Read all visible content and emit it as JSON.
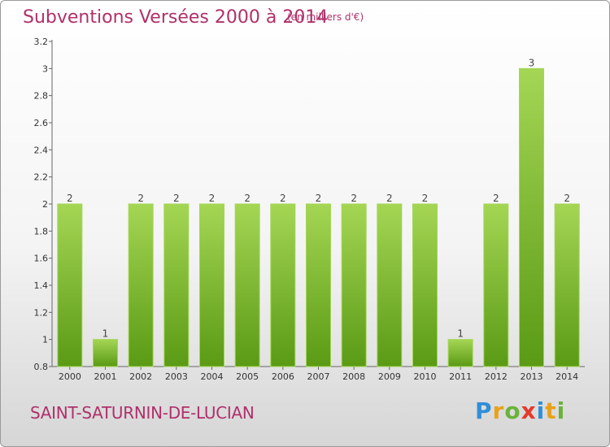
{
  "title": "Subventions Versées 2000 à 2014",
  "subtitle": "(en milliers d'€)",
  "commune": "SAINT-SATURNIN-DE-LUCIAN",
  "logo": {
    "letters": [
      {
        "ch": "P",
        "color": "#2f8fd8"
      },
      {
        "ch": "r",
        "color": "#e8a21a"
      },
      {
        "ch": "o",
        "color": "#6ab23a"
      },
      {
        "ch": "x",
        "color": "#e23a2a"
      },
      {
        "ch": "i",
        "color": "#2f8fd8"
      },
      {
        "ch": "t",
        "color": "#e8a21a"
      },
      {
        "ch": "i",
        "color": "#6ab23a"
      }
    ]
  },
  "chart_data": {
    "type": "bar",
    "categories": [
      "2000",
      "2001",
      "2002",
      "2003",
      "2004",
      "2005",
      "2006",
      "2007",
      "2008",
      "2009",
      "2010",
      "2011",
      "2012",
      "2013",
      "2014"
    ],
    "values": [
      2,
      1,
      2,
      2,
      2,
      2,
      2,
      2,
      2,
      2,
      2,
      1,
      2,
      3,
      2
    ],
    "data_labels": [
      "2",
      "1",
      "2",
      "2",
      "2",
      "2",
      "2",
      "2",
      "2",
      "2",
      "2",
      "1",
      "2",
      "3",
      "2"
    ],
    "y_ticks": [
      "0.8",
      "1",
      "1.2",
      "1.4",
      "1.6",
      "1.8",
      "2",
      "2.2",
      "2.4",
      "2.6",
      "2.8",
      "3",
      "3.2"
    ],
    "ylim": [
      0.8,
      3.2
    ],
    "grid": false,
    "bar_color": "#7cbf2e",
    "bar_color_light": "#a4d654",
    "bar_color_dark": "#5a9a14"
  }
}
